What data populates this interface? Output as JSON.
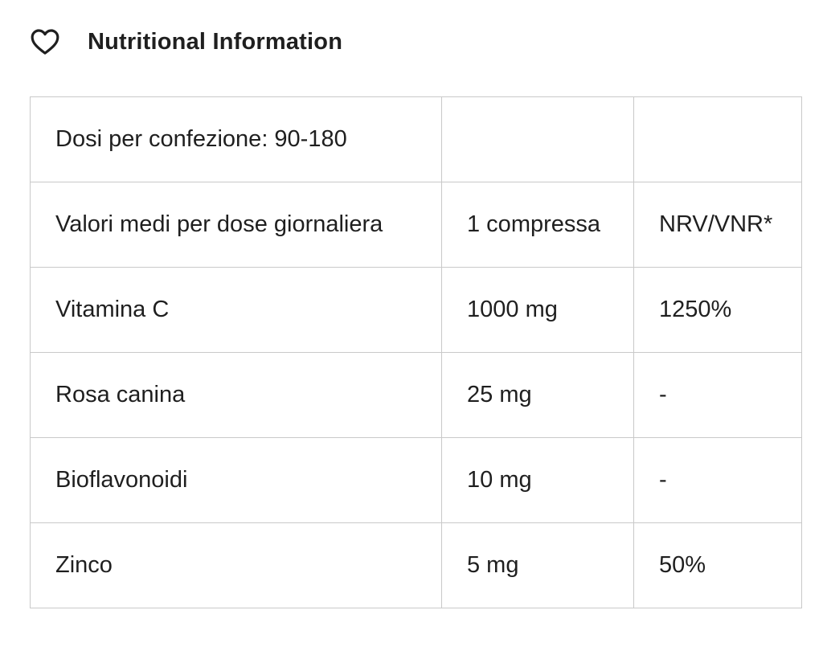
{
  "header": {
    "title": "Nutritional Information",
    "icon": "heart-icon"
  },
  "table": {
    "rows": [
      {
        "label": "Dosi per confezione: 90-180",
        "amount": "",
        "nrv": ""
      },
      {
        "label": "Valori medi per dose giornaliera",
        "amount": "1 compressa",
        "nrv": "NRV/VNR*"
      },
      {
        "label": "Vitamina C",
        "amount": "1000 mg",
        "nrv": "1250%"
      },
      {
        "label": "Rosa canina",
        "amount": "25 mg",
        "nrv": "-"
      },
      {
        "label": "Bioflavonoidi",
        "amount": "10 mg",
        "nrv": "-"
      },
      {
        "label": "Zinco",
        "amount": "5 mg",
        "nrv": "50%"
      }
    ]
  },
  "colors": {
    "text": "#1f1f1f",
    "border": "#c9c9c9",
    "background": "#ffffff"
  }
}
